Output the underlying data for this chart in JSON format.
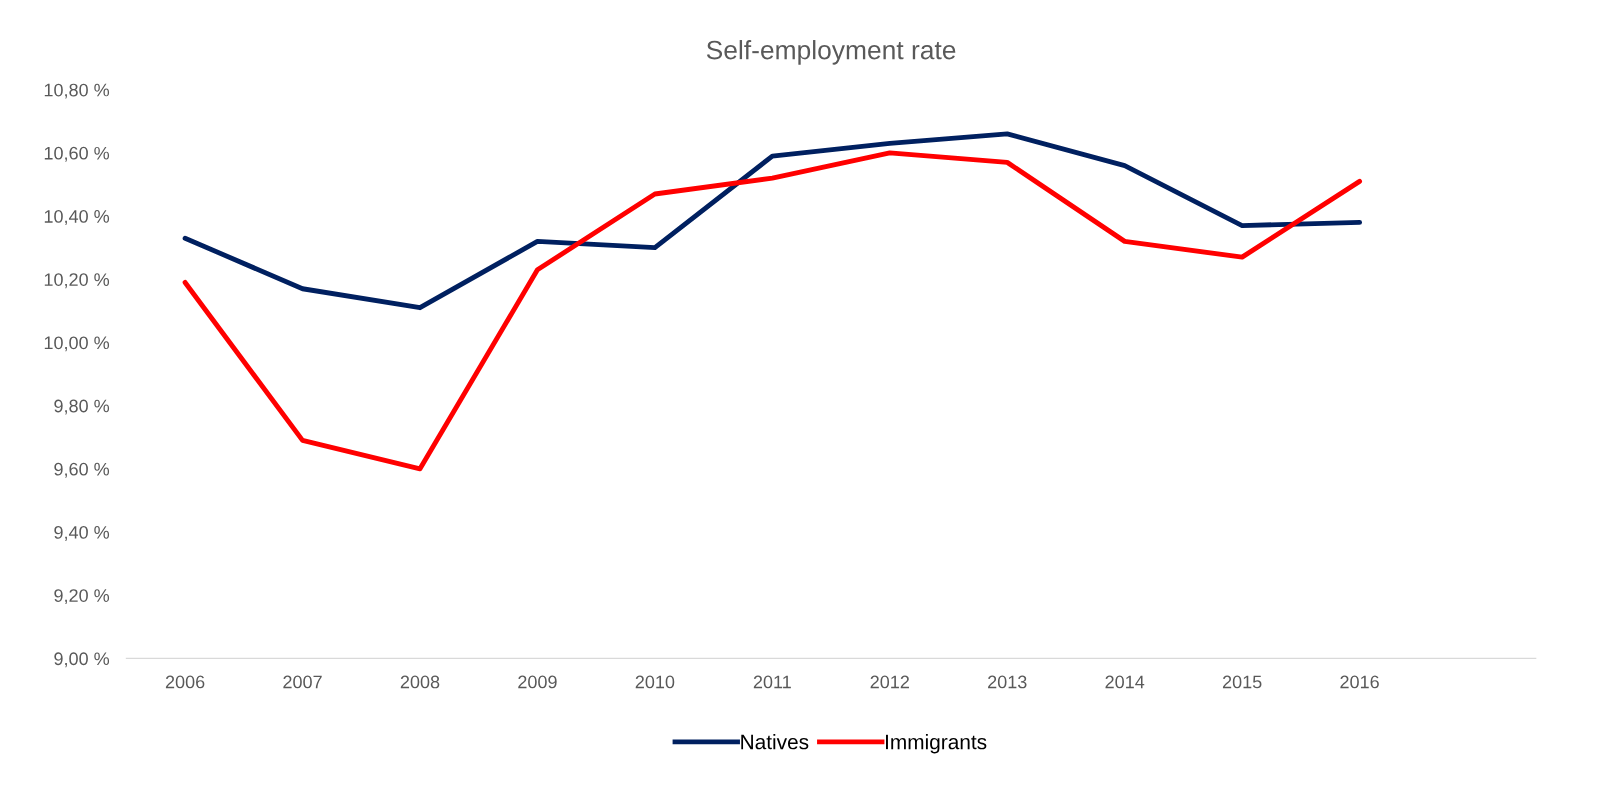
{
  "chart_data": {
    "type": "line",
    "title": "Self-employment rate",
    "categories": [
      "2006",
      "2007",
      "2008",
      "2009",
      "2010",
      "2011",
      "2012",
      "2013",
      "2014",
      "2015",
      "2016",
      null
    ],
    "series": [
      {
        "name": "Natives",
        "color": "#002060",
        "values": [
          10.33,
          10.17,
          10.11,
          10.32,
          10.3,
          10.59,
          10.63,
          10.66,
          10.56,
          10.37,
          10.38,
          null
        ]
      },
      {
        "name": "Immigrants",
        "color": "#ff0000",
        "values": [
          10.19,
          9.69,
          9.6,
          10.23,
          10.47,
          10.52,
          10.6,
          10.57,
          10.32,
          10.27,
          10.51,
          null
        ]
      }
    ],
    "ylim": [
      9.0,
      10.8
    ],
    "yticks": [
      {
        "value": 9.0,
        "label": "9,00 %"
      },
      {
        "value": 9.2,
        "label": "9,20 %"
      },
      {
        "value": 9.4,
        "label": "9,40 %"
      },
      {
        "value": 9.6,
        "label": "9,60 %"
      },
      {
        "value": 9.8,
        "label": "9,80 %"
      },
      {
        "value": 10.0,
        "label": "10,00 %"
      },
      {
        "value": 10.2,
        "label": "10,20 %"
      },
      {
        "value": 10.4,
        "label": "10,40 %"
      },
      {
        "value": 10.6,
        "label": "10,60 %"
      },
      {
        "value": 10.8,
        "label": "10,80 %"
      }
    ],
    "grid": false,
    "legend": "bottom",
    "marker": "none",
    "line_style": "solid"
  }
}
